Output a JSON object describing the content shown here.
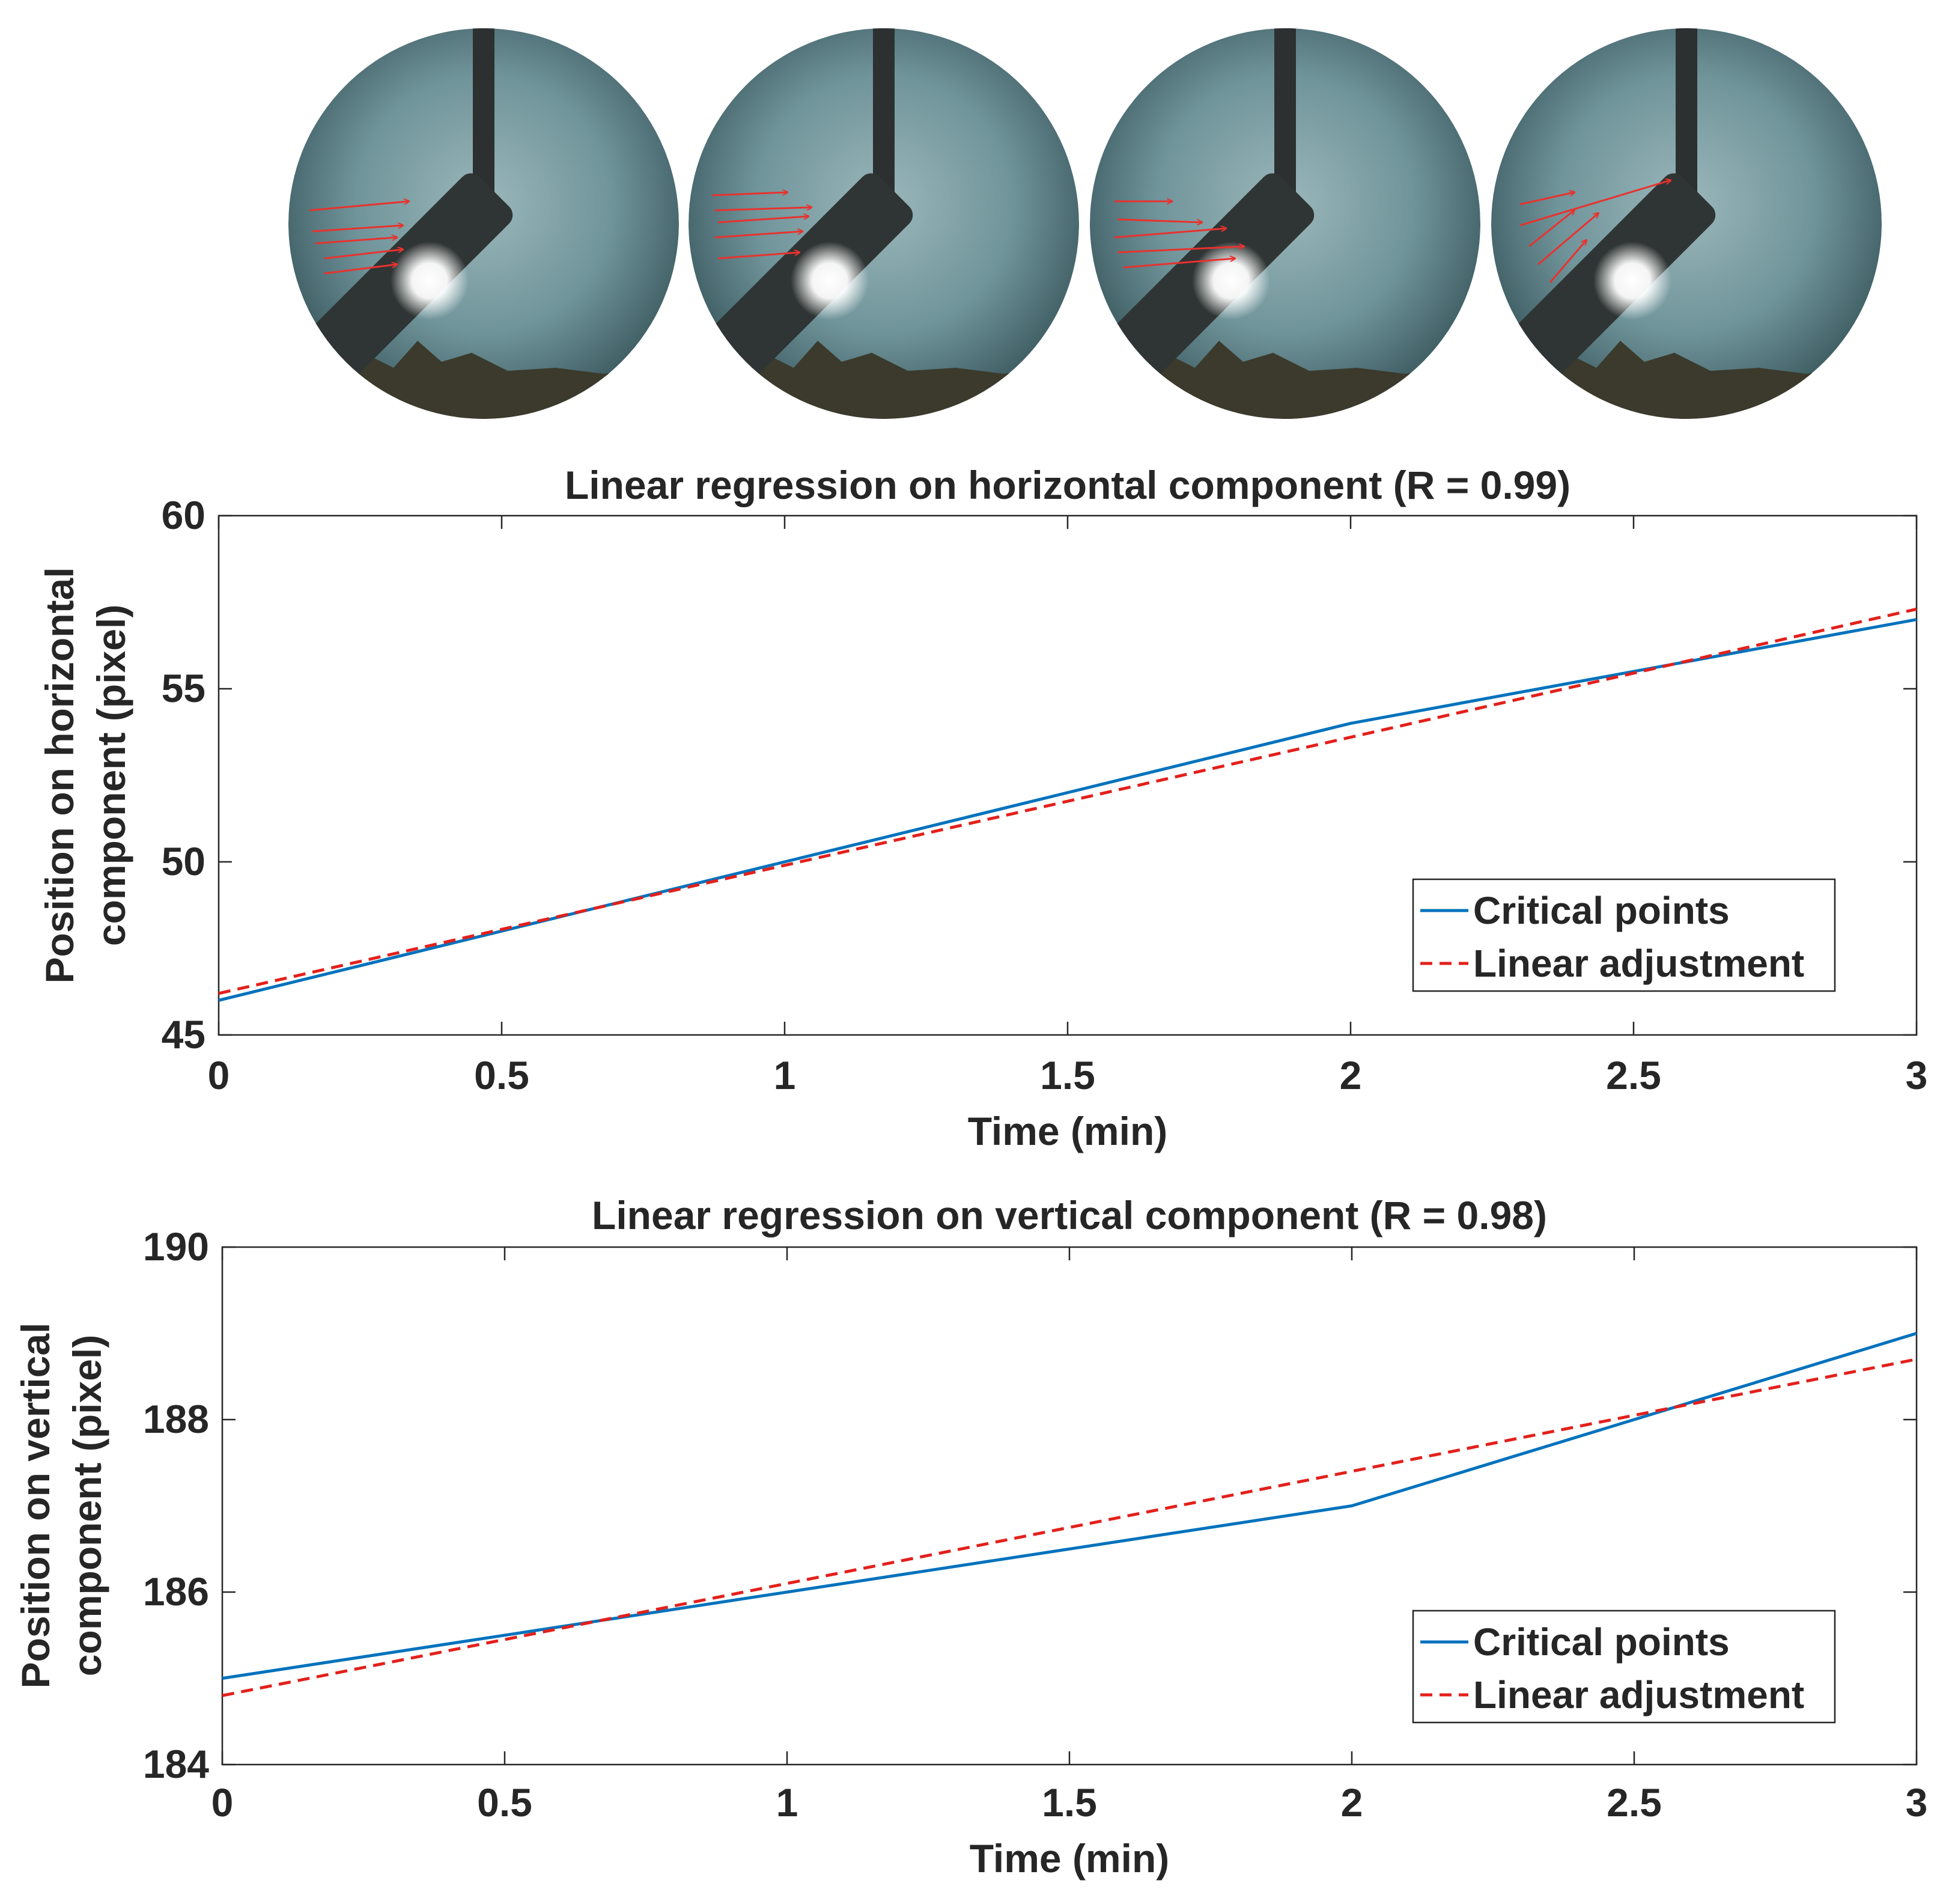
{
  "sky_images": [
    {
      "name": "sky-image-frame-1"
    },
    {
      "name": "sky-image-frame-2"
    },
    {
      "name": "sky-image-frame-3"
    },
    {
      "name": "sky-image-frame-4"
    }
  ],
  "colors": {
    "critical": "#0072BD",
    "linear": "#E3201B",
    "axis": "#262626",
    "sky": "#5f8790",
    "arrow": "#e8322e"
  },
  "chart_data": [
    {
      "type": "line",
      "title": "Linear regression on horizontal component (R = 0.99)",
      "xlabel": "Time (min)",
      "ylabel_line1": "Position on horizontal",
      "ylabel_line2": "component (pixel)",
      "xlim": [
        0,
        3
      ],
      "ylim": [
        45,
        60
      ],
      "xticks": [
        0,
        0.5,
        1,
        1.5,
        2,
        2.5,
        3
      ],
      "xtick_labels": [
        "0",
        "0.5",
        "1",
        "1.5",
        "2",
        "2.5",
        "3"
      ],
      "yticks": [
        45,
        50,
        55,
        60
      ],
      "ytick_labels": [
        "45",
        "50",
        "55",
        "60"
      ],
      "grid": false,
      "legend_position": "bottom-right",
      "series": [
        {
          "name": "Critical points",
          "style": "solid",
          "x": [
            0,
            1,
            2,
            3
          ],
          "y": [
            46,
            50,
            54,
            57
          ]
        },
        {
          "name": "Linear adjustment",
          "style": "dashed",
          "x": [
            0,
            3
          ],
          "y": [
            46.2,
            57.3
          ]
        }
      ]
    },
    {
      "type": "line",
      "title": "Linear regression on vertical component (R = 0.98)",
      "xlabel": "Time (min)",
      "ylabel_line1": "Position on vertical",
      "ylabel_line2": "component (pixel)",
      "xlim": [
        0,
        3
      ],
      "ylim": [
        184,
        190
      ],
      "xticks": [
        0,
        0.5,
        1,
        1.5,
        2,
        2.5,
        3
      ],
      "xtick_labels": [
        "0",
        "0.5",
        "1",
        "1.5",
        "2",
        "2.5",
        "3"
      ],
      "yticks": [
        184,
        186,
        188,
        190
      ],
      "ytick_labels": [
        "184",
        "186",
        "188",
        "190"
      ],
      "grid": false,
      "legend_position": "bottom-right",
      "series": [
        {
          "name": "Critical points",
          "style": "solid",
          "x": [
            0,
            0.5,
            1,
            1.5,
            2,
            2.5,
            3
          ],
          "y": [
            185,
            185.5,
            186,
            186.5,
            187,
            188,
            189
          ]
        },
        {
          "name": "Linear adjustment",
          "style": "dashed",
          "x": [
            0,
            3
          ],
          "y": [
            184.8,
            188.7
          ]
        }
      ]
    }
  ]
}
